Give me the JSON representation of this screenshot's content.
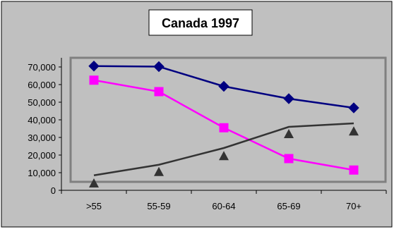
{
  "chart_data": {
    "type": "line",
    "title": "Canada 1997",
    "categories": [
      ">55",
      "55-59",
      "60-64",
      "65-69",
      "70+"
    ],
    "y_ticks": [
      "0",
      "10,000",
      "20,000",
      "30,000",
      "40,000",
      "50,000",
      "60,000",
      "70,000"
    ],
    "ylim": [
      0,
      70000
    ],
    "grid": false,
    "legend": "none",
    "series": [
      {
        "marker": "diamond",
        "color": "#000080",
        "line": true,
        "values": [
          70500,
          70200,
          59000,
          52000,
          46800
        ]
      },
      {
        "marker": "square",
        "color": "#ff00ff",
        "line": true,
        "values": [
          62500,
          56000,
          35500,
          18000,
          11500
        ]
      },
      {
        "marker": "triangle",
        "color": "#333333",
        "line": false,
        "values": [
          4000,
          10500,
          19500,
          32000,
          33500
        ]
      },
      {
        "marker": "none",
        "color": "#333333",
        "line": true,
        "values": [
          8500,
          14500,
          24000,
          36000,
          38000
        ]
      }
    ],
    "colors": {
      "background": "#c0c0c0",
      "plot_border": "#808080",
      "title_box": "#ffffff"
    }
  }
}
